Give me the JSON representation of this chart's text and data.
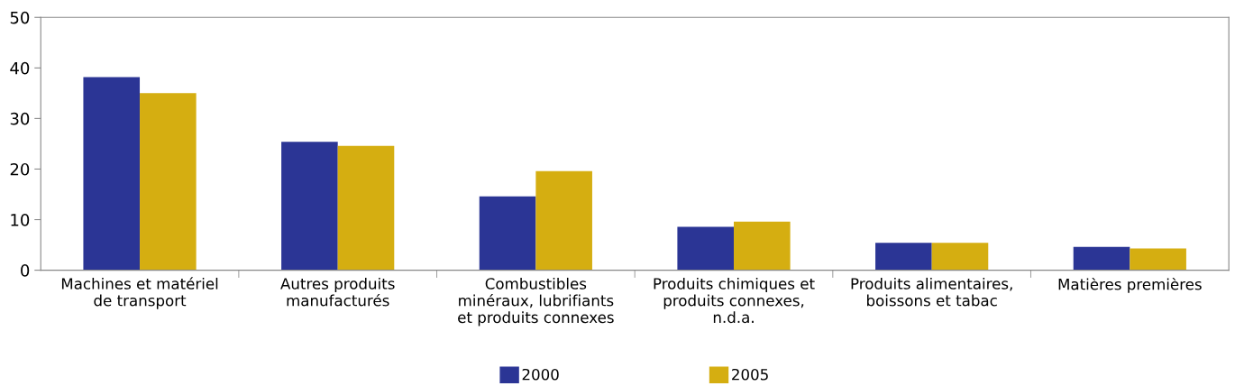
{
  "chart_data": {
    "type": "bar",
    "categories": [
      "Machines et matériel\nde transport",
      "Autres produits\nmanufacturés",
      "Combustibles\nminéraux, lubrifiants\net produits connexes",
      "Produits chimiques et\nproduits connexes,\nn.d.a.",
      "Produits alimentaires,\nboissons et tabac",
      "Matières premières"
    ],
    "series": [
      {
        "name": "2000",
        "color": "#2b3595",
        "values": [
          38.2,
          25.4,
          14.6,
          8.6,
          5.4,
          4.6
        ]
      },
      {
        "name": "2005",
        "color": "#d5ae11",
        "values": [
          35.0,
          24.6,
          19.6,
          9.6,
          5.4,
          4.3
        ]
      }
    ],
    "ylim": [
      0,
      50
    ],
    "yticks": [
      0,
      10,
      20,
      30,
      40,
      50
    ],
    "grid": false,
    "legend": "bottom"
  }
}
